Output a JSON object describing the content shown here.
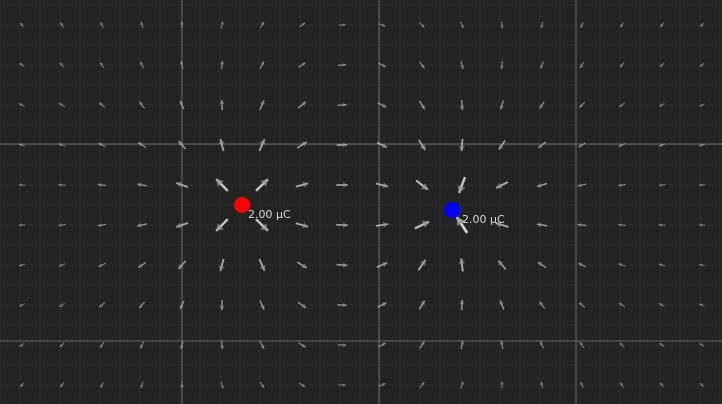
{
  "colors": {
    "background": "#232323",
    "minor_grid": "#2e2e2e",
    "major_grid": "#6a6a6a",
    "vector": "#ffffff",
    "positive_charge": "#ff0000",
    "negative_charge": "#0000ff"
  },
  "field_vectors": {
    "visible": true,
    "icon": "arrow-icon"
  },
  "charges": [
    {
      "id": "positive",
      "sign": 1,
      "label": "2.00  μC",
      "color": "#ff0000"
    },
    {
      "id": "negative",
      "sign": -1,
      "label": "-2.00  μC",
      "color": "#0000ff"
    }
  ]
}
